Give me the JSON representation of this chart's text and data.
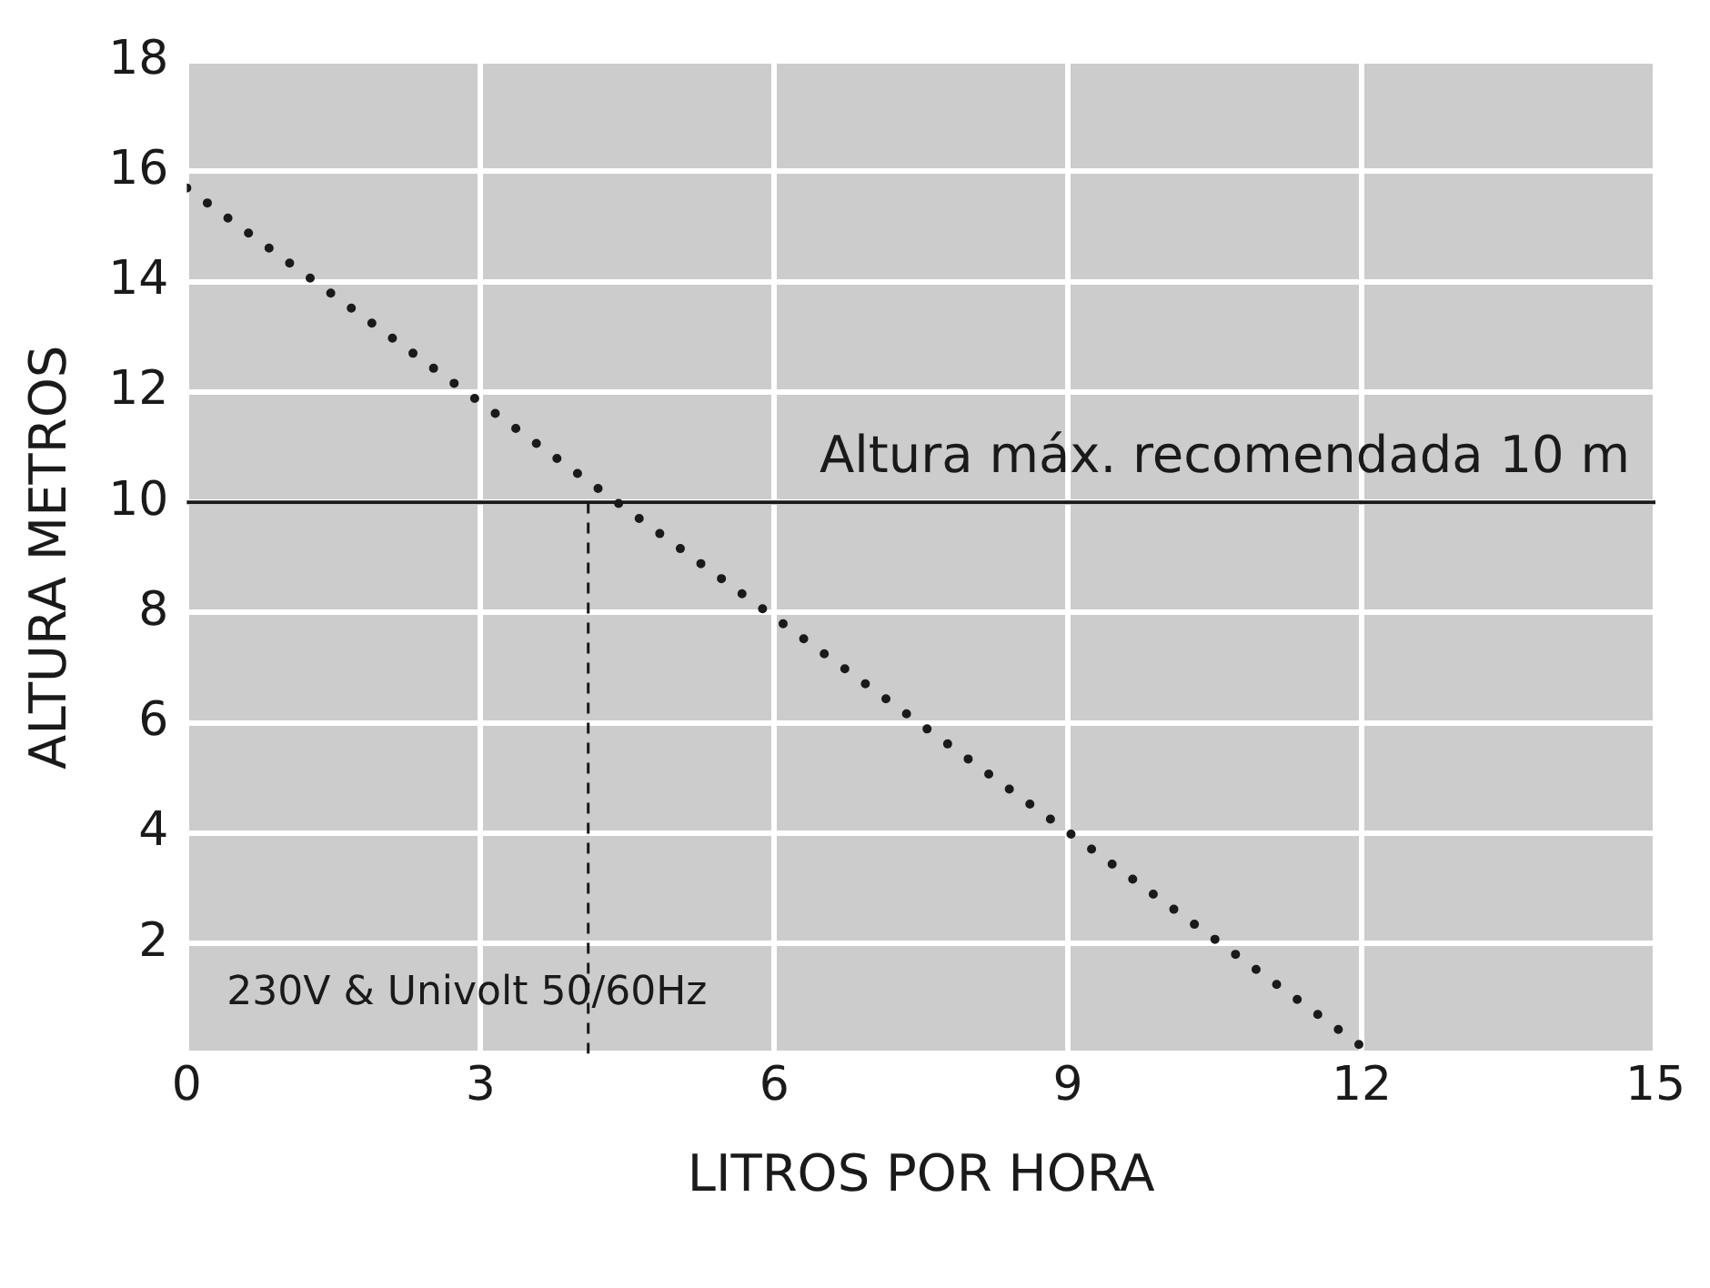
{
  "chart_data": {
    "type": "line",
    "xlabel": "LITROS POR HORA",
    "ylabel": "ALTURA METROS",
    "xlim": [
      0,
      15
    ],
    "xticks": [
      0,
      3,
      6,
      9,
      12,
      15
    ],
    "ylim": [
      0,
      18
    ],
    "yticks": [
      {
        "value": 0,
        "label": null
      },
      2,
      4,
      6,
      8,
      10,
      12,
      14,
      16,
      18
    ],
    "grid": true,
    "legend": false,
    "marker": "none",
    "series": [
      {
        "color": "#1a1a1a",
        "line_style": "dotted",
        "x": [
          0,
          12.1
        ],
        "values": [
          15.7,
          0
        ]
      },
      {
        "color": "#1a1a1a",
        "line_style": "dashed",
        "x": [
          4.1,
          4.1
        ],
        "values": [
          0,
          10
        ]
      }
    ],
    "ref_lines": [
      {
        "axis": "y",
        "value": 10,
        "label": "Altura máx. recomendada 10 m",
        "color": "#1a1a1a"
      }
    ],
    "annotations": [
      "230V & Univolt 50/60Hz"
    ]
  }
}
